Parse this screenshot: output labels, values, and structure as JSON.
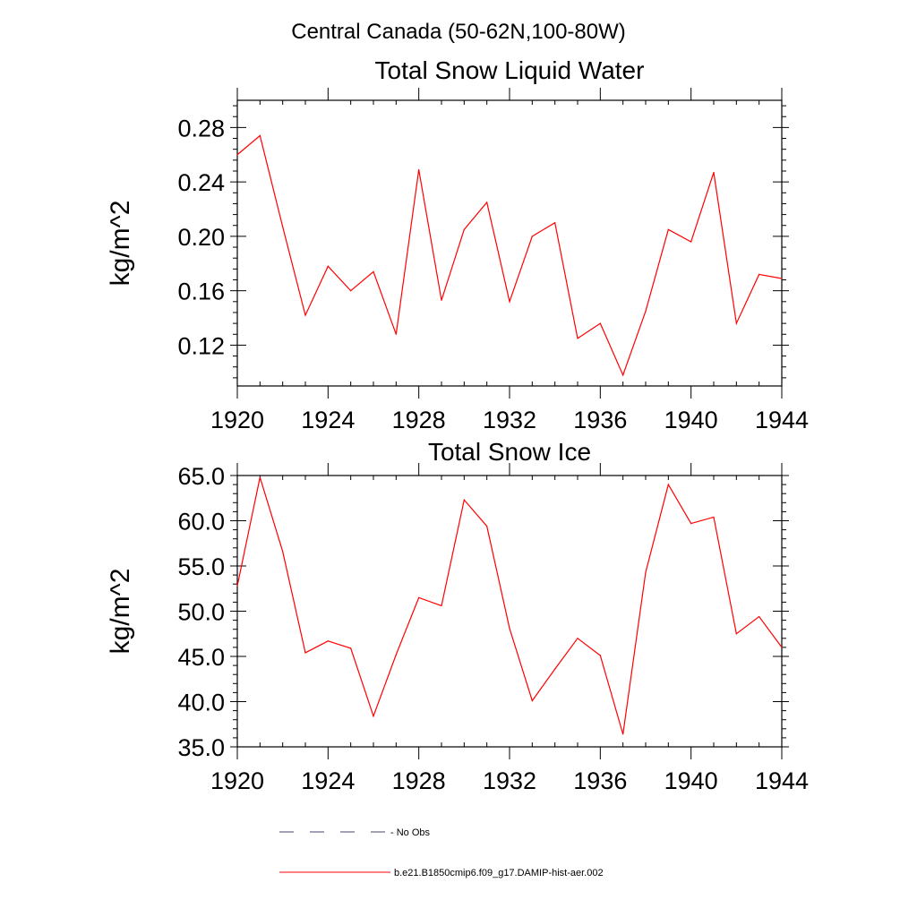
{
  "figure": {
    "suptitle": "Central Canada (50-62N,100-80W)"
  },
  "chart_data": [
    {
      "type": "line",
      "title": "Total Snow Liquid Water",
      "xlabel": "",
      "ylabel": "kg/m^2",
      "xlim": [
        1920,
        1944
      ],
      "ylim": [
        0.09,
        0.3
      ],
      "xticks": [
        1920,
        1924,
        1928,
        1932,
        1936,
        1940,
        1944
      ],
      "yticks": [
        0.12,
        0.16,
        0.2,
        0.24,
        0.28
      ],
      "ytick_labels": [
        "0.12",
        "0.16",
        "0.20",
        "0.24",
        "0.28"
      ],
      "x": [
        1920,
        1921,
        1922,
        1923,
        1924,
        1925,
        1926,
        1927,
        1928,
        1929,
        1930,
        1931,
        1932,
        1933,
        1934,
        1935,
        1936,
        1937,
        1938,
        1939,
        1940,
        1941,
        1942,
        1943,
        1944
      ],
      "series": [
        {
          "name": "b.e21.B1850cmip6.f09_g17.DAMIP-hist-aer.002",
          "color": "#ff0000",
          "values": [
            0.26,
            0.274,
            0.207,
            0.142,
            0.178,
            0.16,
            0.174,
            0.128,
            0.249,
            0.153,
            0.205,
            0.225,
            0.152,
            0.2,
            0.21,
            0.125,
            0.136,
            0.098,
            0.145,
            0.205,
            0.196,
            0.247,
            0.136,
            0.172,
            0.169
          ]
        }
      ]
    },
    {
      "type": "line",
      "title": "Total Snow Ice",
      "xlabel": "",
      "ylabel": "kg/m^2",
      "xlim": [
        1920,
        1944
      ],
      "ylim": [
        35.0,
        65.0
      ],
      "xticks": [
        1920,
        1924,
        1928,
        1932,
        1936,
        1940,
        1944
      ],
      "yticks": [
        35,
        40,
        45,
        50,
        55,
        60,
        65
      ],
      "ytick_labels": [
        "35.0",
        "40.0",
        "45.0",
        "50.0",
        "55.0",
        "60.0",
        "65.0"
      ],
      "x": [
        1920,
        1921,
        1922,
        1923,
        1924,
        1925,
        1926,
        1927,
        1928,
        1929,
        1930,
        1931,
        1932,
        1933,
        1934,
        1935,
        1936,
        1937,
        1938,
        1939,
        1940,
        1941,
        1942,
        1943,
        1944
      ],
      "series": [
        {
          "name": "b.e21.B1850cmip6.f09_g17.DAMIP-hist-aer.002",
          "color": "#ff0000",
          "values": [
            52.8,
            64.8,
            56.6,
            45.4,
            46.7,
            45.9,
            38.4,
            45.2,
            51.5,
            50.6,
            62.3,
            59.4,
            48.1,
            40.1,
            43.6,
            47.0,
            45.1,
            36.4,
            54.3,
            64.0,
            59.7,
            60.4,
            47.5,
            49.4,
            46.0
          ]
        }
      ]
    }
  ],
  "legend": [
    {
      "label": "No Obs",
      "color": "#44446a",
      "style": "dashed"
    },
    {
      "label": "b.e21.B1850cmip6.f09_g17.DAMIP-hist-aer.002",
      "color": "#ff0000",
      "style": "solid"
    }
  ]
}
